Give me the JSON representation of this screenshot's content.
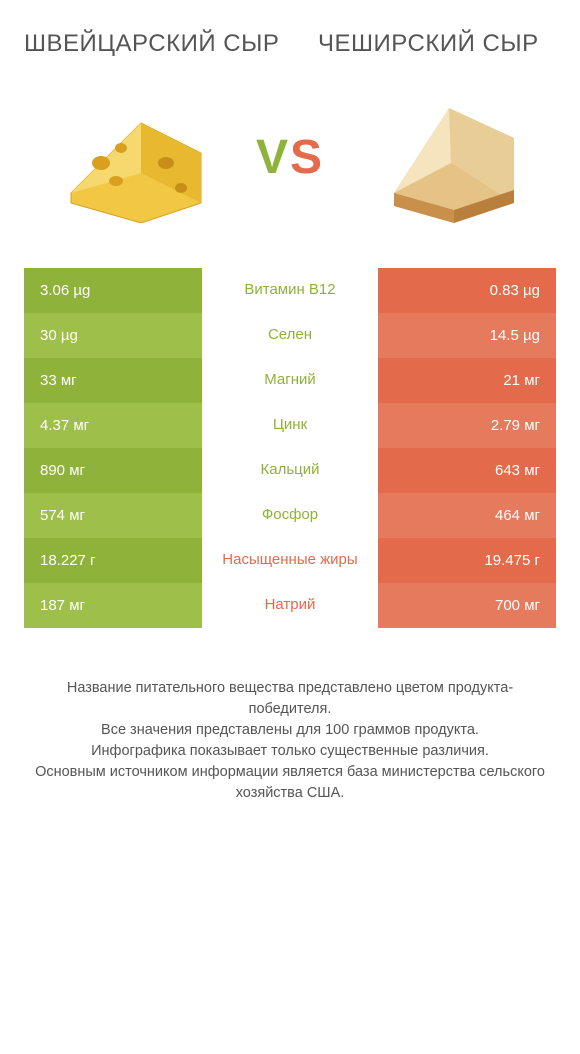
{
  "left_title": "ШВЕЙЦАРСКИЙ СЫР",
  "right_title": "ЧЕШИРСКИЙ СЫР",
  "vs_v": "V",
  "vs_s": "S",
  "colors": {
    "left_a": "#8fb23a",
    "left_b": "#9ebf4a",
    "right_a": "#e36a4b",
    "right_b": "#e67a5c",
    "label_left_win": "#8fb23a",
    "label_right_win": "#e36a4b",
    "text": "#555555"
  },
  "rows": [
    {
      "left": "3.06 µg",
      "label": "Витамин B12",
      "right": "0.83 µg",
      "winner": "left"
    },
    {
      "left": "30 µg",
      "label": "Селен",
      "right": "14.5 µg",
      "winner": "left"
    },
    {
      "left": "33 мг",
      "label": "Магний",
      "right": "21 мг",
      "winner": "left"
    },
    {
      "left": "4.37 мг",
      "label": "Цинк",
      "right": "2.79 мг",
      "winner": "left"
    },
    {
      "left": "890 мг",
      "label": "Кальций",
      "right": "643 мг",
      "winner": "left"
    },
    {
      "left": "574 мг",
      "label": "Фосфор",
      "right": "464 мг",
      "winner": "left"
    },
    {
      "left": "18.227 г",
      "label": "Насыщенные жиры",
      "right": "19.475 г",
      "winner": "right"
    },
    {
      "left": "187 мг",
      "label": "Натрий",
      "right": "700 мг",
      "winner": "right"
    }
  ],
  "footer": {
    "l1": "Название питательного вещества представлено цветом продукта-победителя.",
    "l2": "Все значения представлены для 100 граммов продукта.",
    "l3": "Инфографика показывает только существенные различия.",
    "l4": "Основным источником информации является база министерства сельского хозяйства США."
  }
}
